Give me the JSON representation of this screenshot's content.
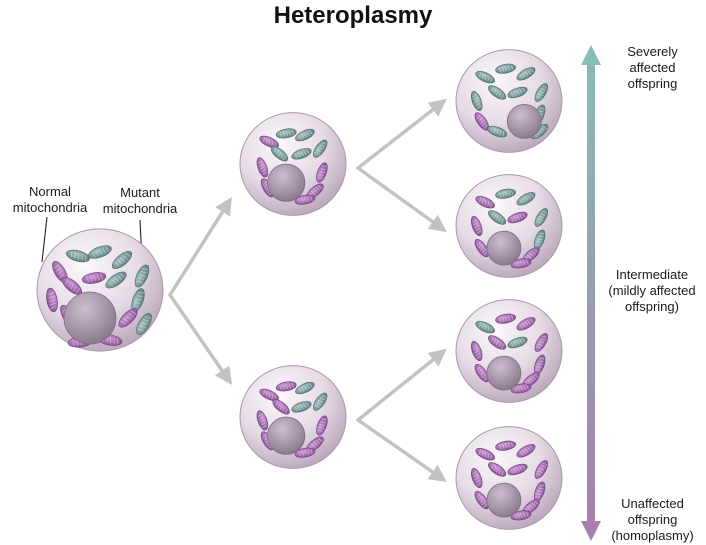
{
  "title": "Heteroplasmy",
  "labels": {
    "normal": "Normal\nmitochondria",
    "mutant": "Mutant\nmitochondria"
  },
  "scale": {
    "top": "Severely\naffected\noffspring",
    "middle": "Intermediate\n(mildly affected\noffspring)",
    "bottom": "Unaffected\noffspring\n(homoplasmy)"
  },
  "colors": {
    "normal_mitochondria": "#a36bb0",
    "mutant_mitochondria": "#6e9290",
    "cell": "#e4d8e2",
    "nucleus": "#a592a6",
    "arrow": "#c2c2c2",
    "scale_top": "#86bdb4",
    "scale_bottom": "#a77fb0"
  }
}
